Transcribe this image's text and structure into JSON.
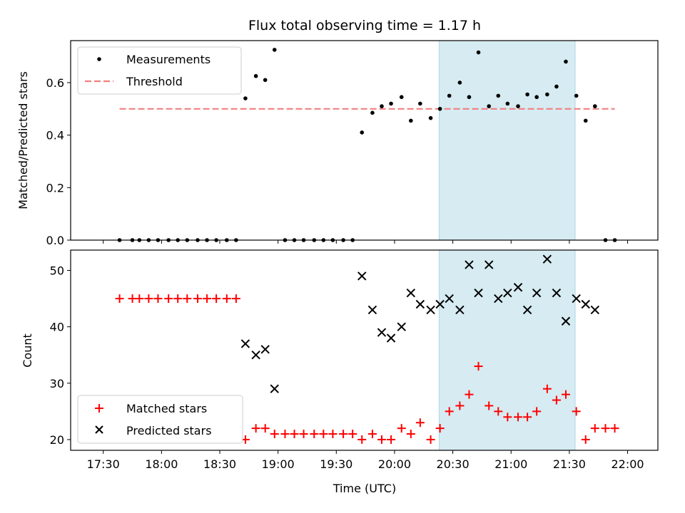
{
  "chart_data": {
    "title": "Flux total observing time = 1.17 h",
    "xlabel": "Time (UTC)",
    "x_unit": "hours UTC (decimal)",
    "xlim": [
      17.22,
      22.26
    ],
    "x_ticks": [
      {
        "value": 17.5,
        "label": "17:30"
      },
      {
        "value": 18.0,
        "label": "18:00"
      },
      {
        "value": 18.5,
        "label": "18:30"
      },
      {
        "value": 19.0,
        "label": "19:00"
      },
      {
        "value": 19.5,
        "label": "19:30"
      },
      {
        "value": 20.0,
        "label": "20:00"
      },
      {
        "value": 20.5,
        "label": "20:30"
      },
      {
        "value": 21.0,
        "label": "21:00"
      },
      {
        "value": 21.5,
        "label": "21:30"
      },
      {
        "value": 22.0,
        "label": "22:00"
      }
    ],
    "shaded_span": {
      "x_start": 20.383,
      "x_end": 21.55,
      "color": "#add8e6"
    },
    "x": [
      17.64,
      17.75,
      17.81,
      17.89,
      17.97,
      18.06,
      18.14,
      18.22,
      18.31,
      18.39,
      18.47,
      18.56,
      18.64,
      18.72,
      18.81,
      18.89,
      18.97,
      19.06,
      19.14,
      19.22,
      19.31,
      19.39,
      19.47,
      19.56,
      19.64,
      19.72,
      19.81,
      19.89,
      19.97,
      20.06,
      20.14,
      20.22,
      20.31,
      20.39,
      20.47,
      20.56,
      20.64,
      20.72,
      20.81,
      20.89,
      20.97,
      21.06,
      21.14,
      21.22,
      21.31,
      21.39,
      21.47,
      21.56,
      21.64,
      21.72,
      21.81,
      21.89
    ],
    "panels": [
      {
        "name": "ratio",
        "type": "scatter",
        "ylabel": "Matched/Predicted stars",
        "ylim": [
          0,
          0.76
        ],
        "y_ticks": [
          0.0,
          0.2,
          0.4,
          0.6
        ],
        "y_tick_labels": [
          "0.0",
          "0.2",
          "0.4",
          "0.6"
        ],
        "legend_position": "top-left",
        "series": [
          {
            "name": "Measurements",
            "style": "dot",
            "color": "#000000",
            "values": [
              0,
              0,
              0,
              0,
              0,
              0,
              0,
              0,
              0,
              0,
              0,
              0,
              0,
              0.54,
              0.625,
              0.61,
              0.725,
              0,
              0,
              0,
              0,
              0,
              0,
              0,
              0,
              0.41,
              0.485,
              0.51,
              0.52,
              0.545,
              0.455,
              0.52,
              0.465,
              0.5,
              0.55,
              0.6,
              0.545,
              0.715,
              0.51,
              0.55,
              0.52,
              0.51,
              0.555,
              0.545,
              0.555,
              0.585,
              0.68,
              0.55,
              0.455,
              0.51,
              0,
              0
            ]
          }
        ],
        "threshold": {
          "name": "Threshold",
          "value": 0.5,
          "x_start": 17.64,
          "x_end": 21.89,
          "style": "dashed",
          "color": "#f08080"
        }
      },
      {
        "name": "counts",
        "type": "scatter",
        "ylabel": "Count",
        "ylim": [
          18.1,
          53.6
        ],
        "y_ticks": [
          20,
          30,
          40,
          50
        ],
        "y_tick_labels": [
          "20",
          "30",
          "40",
          "50"
        ],
        "legend_position": "bottom-left",
        "series": [
          {
            "name": "Matched stars",
            "style": "plus",
            "color": "#ff0000",
            "values": [
              45,
              45,
              45,
              45,
              45,
              45,
              45,
              45,
              45,
              45,
              45,
              45,
              45,
              20,
              22,
              22,
              21,
              21,
              21,
              21,
              21,
              21,
              21,
              21,
              21,
              20,
              21,
              20,
              20,
              22,
              21,
              23,
              20,
              22,
              25,
              26,
              28,
              33,
              26,
              25,
              24,
              24,
              24,
              25,
              29,
              27,
              28,
              25,
              20,
              22,
              22,
              22
            ]
          },
          {
            "name": "Predicted stars",
            "style": "x",
            "color": "#000000",
            "values": [
              null,
              null,
              null,
              null,
              null,
              null,
              null,
              null,
              null,
              null,
              null,
              null,
              null,
              37,
              35,
              36,
              29,
              null,
              null,
              null,
              null,
              null,
              null,
              null,
              null,
              49,
              43,
              39,
              38,
              40,
              46,
              44,
              43,
              44,
              45,
              43,
              51,
              46,
              51,
              45,
              46,
              47,
              43,
              46,
              52,
              46,
              41,
              45,
              44,
              43,
              null,
              null
            ]
          }
        ]
      }
    ]
  }
}
